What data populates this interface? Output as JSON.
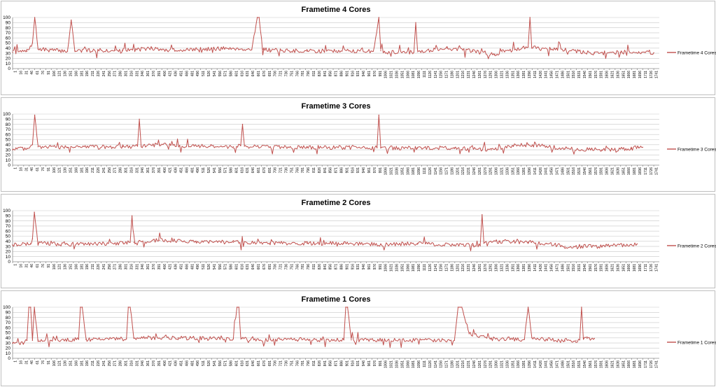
{
  "chart_data": [
    {
      "type": "line",
      "title": "Frametime 4 Cores",
      "ylim": [
        0,
        100
      ],
      "yticks": [
        0,
        10,
        20,
        30,
        40,
        50,
        60,
        70,
        80,
        90,
        100
      ],
      "grid": true,
      "legend_position": "right",
      "x_tick_labels": [
        "1",
        "16",
        "31",
        "46",
        "61",
        "76",
        "91",
        "106",
        "121",
        "136",
        "151",
        "166",
        "181",
        "196",
        "211",
        "226",
        "241",
        "256",
        "271",
        "286",
        "301",
        "316",
        "331",
        "346",
        "361",
        "376",
        "391",
        "406",
        "421",
        "436",
        "451",
        "466",
        "481",
        "496",
        "511",
        "526",
        "541",
        "556",
        "571",
        "586",
        "601",
        "616",
        "631",
        "646",
        "661",
        "676",
        "691",
        "706",
        "721",
        "736",
        "751",
        "766",
        "781",
        "796",
        "811",
        "826",
        "841",
        "856",
        "871",
        "886",
        "901",
        "916",
        "931",
        "946",
        "961",
        "976",
        "991",
        "1006",
        "1021",
        "1036",
        "1051",
        "1066",
        "1081",
        "1096",
        "1111",
        "1126",
        "1141",
        "1156",
        "1171",
        "1186",
        "1201",
        "1216",
        "1231",
        "1246",
        "1261",
        "1276",
        "1291",
        "1306",
        "1321",
        "1336",
        "1351",
        "1366",
        "1381",
        "1396",
        "1411",
        "1426",
        "1441",
        "1456",
        "1471",
        "1486",
        "1501",
        "1516",
        "1531",
        "1546",
        "1561",
        "1576",
        "1591",
        "1606",
        "1621",
        "1636",
        "1651",
        "1666",
        "1681",
        "1696",
        "1711",
        "1726",
        "1741"
      ],
      "series": [
        {
          "name": "Frametime 4 Cores",
          "color": "#c0504d",
          "x": [
            1,
            40,
            55,
            61,
            70,
            150,
            160,
            170,
            280,
            300,
            380,
            400,
            420,
            520,
            600,
            650,
            665,
            670,
            680,
            700,
            800,
            880,
            980,
            995,
            1000,
            1010,
            1090,
            1095,
            1100,
            1180,
            1250,
            1310,
            1330,
            1400,
            1405,
            1410,
            1480,
            1580,
            1650,
            1700,
            1741
          ],
          "values": [
            32,
            34,
            50,
            100,
            38,
            34,
            95,
            35,
            36,
            35,
            40,
            37,
            36,
            38,
            40,
            37,
            100,
            100,
            38,
            36,
            34,
            35,
            34,
            100,
            35,
            33,
            32,
            90,
            33,
            40,
            34,
            28,
            33,
            42,
            100,
            42,
            38,
            30,
            32,
            33,
            31
          ]
        }
      ]
    },
    {
      "type": "line",
      "title": "Frametime 3 Cores",
      "ylim": [
        0,
        100
      ],
      "yticks": [
        0,
        10,
        20,
        30,
        40,
        50,
        60,
        70,
        80,
        90,
        100
      ],
      "grid": true,
      "legend_position": "right",
      "x_tick_labels": [
        "1",
        "16",
        "31",
        "46",
        "61",
        "76",
        "91",
        "106",
        "121",
        "136",
        "151",
        "166",
        "181",
        "196",
        "211",
        "226",
        "241",
        "256",
        "271",
        "286",
        "301",
        "316",
        "331",
        "346",
        "361",
        "376",
        "391",
        "406",
        "421",
        "436",
        "451",
        "466",
        "481",
        "496",
        "511",
        "526",
        "541",
        "556",
        "571",
        "586",
        "601",
        "616",
        "631",
        "646",
        "661",
        "676",
        "691",
        "706",
        "721",
        "736",
        "751",
        "766",
        "781",
        "796",
        "811",
        "826",
        "841",
        "856",
        "871",
        "886",
        "901",
        "916",
        "931",
        "946",
        "961",
        "976",
        "991",
        "1006",
        "1021",
        "1036",
        "1051",
        "1066",
        "1081",
        "1096",
        "1111",
        "1126",
        "1141",
        "1156",
        "1171",
        "1186",
        "1201",
        "1216",
        "1231",
        "1246",
        "1261",
        "1276",
        "1291",
        "1306",
        "1321",
        "1336",
        "1351",
        "1366",
        "1381",
        "1396",
        "1411",
        "1426",
        "1441",
        "1456",
        "1471",
        "1486",
        "1501",
        "1516",
        "1531",
        "1546",
        "1561",
        "1576",
        "1591",
        "1606",
        "1621",
        "1636",
        "1651",
        "1666",
        "1681",
        "1696",
        "1711",
        "1726",
        "1741"
      ],
      "series": [
        {
          "name": "Frametime 3 Cores",
          "color": "#c0504d",
          "x": [
            1,
            40,
            55,
            61,
            70,
            150,
            300,
            340,
            345,
            350,
            400,
            500,
            600,
            620,
            625,
            630,
            700,
            800,
            990,
            995,
            1000,
            1100,
            1200,
            1300,
            1360,
            1400,
            1450,
            1500,
            1600,
            1680,
            1700,
            1711
          ],
          "values": [
            30,
            33,
            40,
            98,
            36,
            35,
            36,
            37,
            90,
            37,
            40,
            37,
            36,
            38,
            80,
            37,
            36,
            35,
            34,
            98,
            34,
            33,
            34,
            30,
            38,
            40,
            37,
            32,
            30,
            32,
            35,
            35
          ]
        }
      ]
    },
    {
      "type": "line",
      "title": "Frametime 2 Cores",
      "ylim": [
        0,
        100
      ],
      "yticks": [
        0,
        10,
        20,
        30,
        40,
        50,
        60,
        70,
        80,
        90,
        100
      ],
      "grid": true,
      "legend_position": "right",
      "x_tick_labels": [
        "1",
        "16",
        "31",
        "46",
        "61",
        "76",
        "91",
        "106",
        "121",
        "136",
        "151",
        "166",
        "181",
        "196",
        "211",
        "226",
        "241",
        "256",
        "271",
        "286",
        "301",
        "316",
        "331",
        "346",
        "361",
        "376",
        "391",
        "406",
        "421",
        "436",
        "451",
        "466",
        "481",
        "496",
        "511",
        "526",
        "541",
        "556",
        "571",
        "586",
        "601",
        "616",
        "631",
        "646",
        "661",
        "676",
        "691",
        "706",
        "721",
        "736",
        "751",
        "766",
        "781",
        "796",
        "811",
        "826",
        "841",
        "856",
        "871",
        "886",
        "901",
        "916",
        "931",
        "946",
        "961",
        "976",
        "991",
        "1006",
        "1021",
        "1036",
        "1051",
        "1066",
        "1081",
        "1096",
        "1111",
        "1126",
        "1141",
        "1156",
        "1171",
        "1186",
        "1201",
        "1216",
        "1231",
        "1246",
        "1261",
        "1276",
        "1291",
        "1306",
        "1321",
        "1336",
        "1351",
        "1366",
        "1381",
        "1396",
        "1411",
        "1426",
        "1441",
        "1456",
        "1471",
        "1486",
        "1501",
        "1516",
        "1531",
        "1546",
        "1561",
        "1576",
        "1591",
        "1606",
        "1621",
        "1636",
        "1651",
        "1666",
        "1681",
        "1696",
        "1711",
        "1726",
        "1741"
      ],
      "series": [
        {
          "name": "Frametime 2 Cores",
          "color": "#c0504d",
          "x": [
            1,
            50,
            55,
            60,
            70,
            150,
            300,
            320,
            325,
            330,
            400,
            500,
            600,
            700,
            800,
            900,
            1000,
            1100,
            1200,
            1250,
            1270,
            1275,
            1280,
            1320,
            1400,
            1450,
            1500,
            1600,
            1680,
            1696
          ],
          "values": [
            33,
            36,
            45,
            97,
            36,
            34,
            37,
            38,
            90,
            38,
            42,
            40,
            38,
            37,
            36,
            36,
            34,
            36,
            33,
            32,
            31,
            92,
            36,
            40,
            38,
            36,
            30,
            30,
            34,
            35
          ]
        }
      ]
    },
    {
      "type": "line",
      "title": "Frametime 1 Cores",
      "ylim": [
        0,
        100
      ],
      "yticks": [
        0,
        10,
        20,
        30,
        40,
        50,
        60,
        70,
        80,
        90,
        100
      ],
      "grid": true,
      "legend_position": "right",
      "x_tick_labels": [
        "1",
        "16",
        "31",
        "46",
        "61",
        "76",
        "91",
        "106",
        "121",
        "136",
        "151",
        "166",
        "181",
        "196",
        "211",
        "226",
        "241",
        "256",
        "271",
        "286",
        "301",
        "316",
        "331",
        "346",
        "361",
        "376",
        "391",
        "406",
        "421",
        "436",
        "451",
        "466",
        "481",
        "496",
        "511",
        "526",
        "541",
        "556",
        "571",
        "586",
        "601",
        "616",
        "631",
        "646",
        "661",
        "676",
        "691",
        "706",
        "721",
        "736",
        "751",
        "766",
        "781",
        "796",
        "811",
        "826",
        "841",
        "856",
        "871",
        "886",
        "901",
        "916",
        "931",
        "946",
        "961",
        "976",
        "991",
        "1006",
        "1021",
        "1036",
        "1051",
        "1066",
        "1081",
        "1096",
        "1111",
        "1126",
        "1141",
        "1156",
        "1171",
        "1186",
        "1201",
        "1216",
        "1231",
        "1246",
        "1261",
        "1276",
        "1291",
        "1306",
        "1321",
        "1336",
        "1351",
        "1366",
        "1381",
        "1396",
        "1411",
        "1426",
        "1441",
        "1456",
        "1471",
        "1486",
        "1501",
        "1516",
        "1531",
        "1546",
        "1561",
        "1576",
        "1591",
        "1606",
        "1621",
        "1636",
        "1651",
        "1666",
        "1681",
        "1696",
        "1711",
        "1726",
        "1741"
      ],
      "series": [
        {
          "name": "Frametime 1 Cores",
          "color": "#c0504d",
          "x": [
            1,
            30,
            40,
            45,
            50,
            55,
            60,
            70,
            180,
            185,
            190,
            200,
            310,
            315,
            320,
            330,
            450,
            600,
            610,
            615,
            620,
            700,
            900,
            905,
            910,
            920,
            1200,
            1210,
            1215,
            1220,
            1240,
            1300,
            1390,
            1400,
            1410,
            1500,
            1530,
            1540,
            1545,
            1550,
            1560,
            1580
          ],
          "values": [
            30,
            29,
            35,
            100,
            100,
            35,
            100,
            36,
            37,
            100,
            100,
            37,
            38,
            100,
            100,
            40,
            40,
            38,
            100,
            100,
            38,
            37,
            36,
            100,
            100,
            36,
            35,
            100,
            100,
            100,
            48,
            38,
            37,
            100,
            40,
            34,
            35,
            36,
            100,
            40,
            39,
            39
          ]
        }
      ]
    }
  ]
}
